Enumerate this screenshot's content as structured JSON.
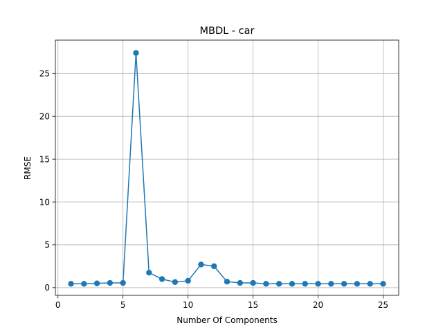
{
  "chart_data": {
    "type": "line",
    "title": "MBDL - car",
    "xlabel": "Number Of Components",
    "ylabel": "RMSE",
    "xlim": [
      -0.2,
      26.2
    ],
    "ylim": [
      -0.9,
      28.9
    ],
    "xticks": [
      0,
      5,
      10,
      15,
      20,
      25
    ],
    "yticks": [
      0,
      5,
      10,
      15,
      20,
      25
    ],
    "xtick_labels": [
      "0",
      "5",
      "10",
      "15",
      "20",
      "25"
    ],
    "ytick_labels": [
      "0",
      "5",
      "10",
      "15",
      "20",
      "25"
    ],
    "grid": true,
    "marker": "circle",
    "color": "#1f77b4",
    "series": [
      {
        "x": [
          1,
          2,
          3,
          4,
          5,
          6,
          7,
          8,
          9,
          10,
          11,
          12,
          13,
          14,
          15,
          16,
          17,
          18,
          19,
          20,
          21,
          22,
          23,
          24,
          25
        ],
        "y": [
          0.45,
          0.45,
          0.5,
          0.55,
          0.55,
          27.4,
          1.75,
          1.0,
          0.65,
          0.8,
          2.7,
          2.5,
          0.7,
          0.55,
          0.55,
          0.45,
          0.45,
          0.45,
          0.45,
          0.45,
          0.45,
          0.45,
          0.45,
          0.45,
          0.45
        ]
      }
    ]
  }
}
